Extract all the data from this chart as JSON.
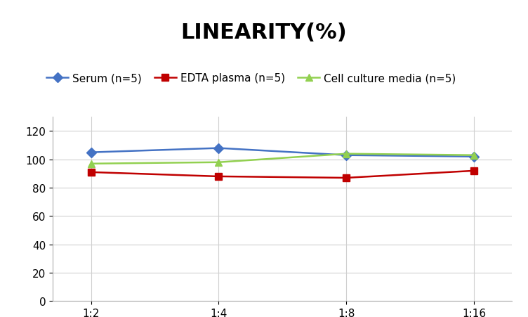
{
  "title": "LINEARITY(%)",
  "x_labels": [
    "1:2",
    "1:4",
    "1:8",
    "1:16"
  ],
  "x_values": [
    0,
    1,
    2,
    3
  ],
  "series": [
    {
      "label": "Serum (n=5)",
      "values": [
        105,
        108,
        103,
        102
      ],
      "color": "#4472C4",
      "marker": "D",
      "marker_color": "#4472C4"
    },
    {
      "label": "EDTA plasma (n=5)",
      "values": [
        91,
        88,
        87,
        92
      ],
      "color": "#C00000",
      "marker": "s",
      "marker_color": "#C00000"
    },
    {
      "label": "Cell culture media (n=5)",
      "values": [
        97,
        98,
        104,
        103
      ],
      "color": "#92D050",
      "marker": "^",
      "marker_color": "#92D050"
    }
  ],
  "ylim": [
    0,
    130
  ],
  "yticks": [
    0,
    20,
    40,
    60,
    80,
    100,
    120
  ],
  "background_color": "#ffffff",
  "grid_color": "#d0d0d0",
  "title_fontsize": 22,
  "legend_fontsize": 11,
  "tick_fontsize": 11
}
